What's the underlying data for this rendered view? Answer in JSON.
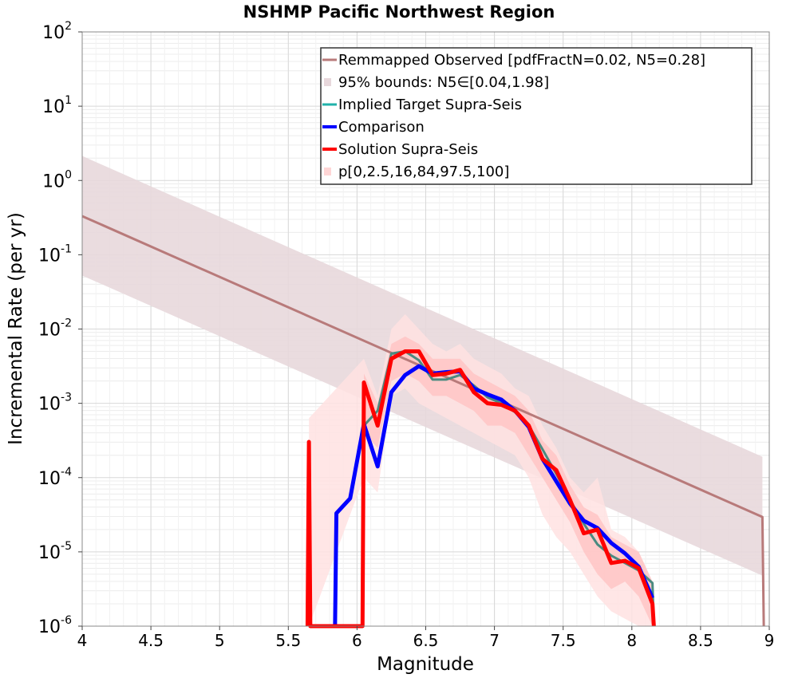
{
  "chart_data": {
    "type": "line",
    "title": "NSHMP Pacific Northwest Region",
    "xlabel": "Magnitude",
    "ylabel": "Incremental Rate (per yr)",
    "xlim": [
      4,
      9
    ],
    "ylim_log10": [
      -6,
      2
    ],
    "yscale": "log",
    "grid": true,
    "x_ticks": [
      4,
      4.5,
      5,
      5.5,
      6,
      6.5,
      7,
      7.5,
      8,
      8.5,
      9
    ],
    "x_tick_labels": [
      "4",
      "4.5",
      "5",
      "5.5",
      "6",
      "6.5",
      "7",
      "7.5",
      "8",
      "8.5",
      "9"
    ],
    "y_ticks": [
      {
        "base": "10",
        "exp": "2",
        "log10": 2
      },
      {
        "base": "10",
        "exp": "1",
        "log10": 1
      },
      {
        "base": "10",
        "exp": "0",
        "log10": 0
      },
      {
        "base": "10",
        "exp": "-1",
        "log10": -1
      },
      {
        "base": "10",
        "exp": "-2",
        "log10": -2
      },
      {
        "base": "10",
        "exp": "-3",
        "log10": -3
      },
      {
        "base": "10",
        "exp": "-4",
        "log10": -4
      },
      {
        "base": "10",
        "exp": "-5",
        "log10": -5
      },
      {
        "base": "10",
        "exp": "-6",
        "log10": -6
      }
    ],
    "legend_position": "top-right",
    "legend": [
      {
        "label": "Remmapped Observed [pdfFractN=0.02, N5=0.28]",
        "color": "#b87a7a",
        "style": "line"
      },
      {
        "label": "95% bounds: N5∈[0.04,1.98]",
        "color": "#e8d8dc",
        "style": "band"
      },
      {
        "label": "Implied Target Supra-Seis",
        "color": "#20b2aa",
        "style": "line"
      },
      {
        "label": "Comparison",
        "color": "#0000ff",
        "style": "thickline"
      },
      {
        "label": "Solution Supra-Seis",
        "color": "#ff0000",
        "style": "thickline"
      },
      {
        "label": "p[0,2.5,16,84,97.5,100]",
        "color": "#ffd6d6",
        "style": "band"
      }
    ],
    "series": [
      {
        "name": "Remmapped Observed [pdfFractN=0.02, N5=0.28]",
        "color": "#b87a7a",
        "width": 3,
        "x": [
          4.0,
          8.95,
          8.96
        ],
        "y_log10": [
          -0.48,
          -4.53,
          -6.0
        ]
      },
      {
        "name": "Implied Target Supra-Seis",
        "color": "#4a8a80",
        "width": 3,
        "x": [
          6.05,
          6.15,
          6.25,
          6.35,
          6.45,
          6.55,
          6.65,
          6.75,
          6.85,
          6.95,
          7.05,
          7.15,
          7.25,
          7.35,
          7.45,
          7.55,
          7.65,
          7.75,
          7.85,
          7.95,
          8.05,
          8.15,
          8.16
        ],
        "y_log10": [
          -3.3,
          -3.1,
          -2.33,
          -2.3,
          -2.42,
          -2.68,
          -2.68,
          -2.62,
          -2.76,
          -2.92,
          -3.0,
          -3.12,
          -3.3,
          -3.62,
          -3.95,
          -4.3,
          -4.62,
          -4.9,
          -5.05,
          -5.15,
          -5.25,
          -5.42,
          -6.0
        ]
      },
      {
        "name": "Comparison",
        "color": "#0000ff",
        "width": 5,
        "x": [
          5.84,
          5.85,
          5.95,
          6.05,
          6.15,
          6.25,
          6.35,
          6.45,
          6.55,
          6.65,
          6.75,
          6.85,
          6.95,
          7.05,
          7.15,
          7.25,
          7.35,
          7.45,
          7.55,
          7.65,
          7.75,
          7.85,
          7.95,
          8.05,
          8.15
        ],
        "y_log10": [
          -6.0,
          -4.48,
          -4.28,
          -3.28,
          -3.85,
          -2.85,
          -2.62,
          -2.5,
          -2.6,
          -2.58,
          -2.57,
          -2.8,
          -2.88,
          -2.95,
          -3.1,
          -3.32,
          -3.75,
          -4.05,
          -4.35,
          -4.58,
          -4.68,
          -4.88,
          -5.02,
          -5.2,
          -5.62
        ]
      },
      {
        "name": "Solution Supra-Seis",
        "color": "#ff0000",
        "width": 5,
        "x": [
          5.64,
          5.65,
          5.66,
          6.04,
          6.05,
          6.15,
          6.25,
          6.35,
          6.45,
          6.55,
          6.65,
          6.75,
          6.85,
          6.95,
          7.05,
          7.15,
          7.25,
          7.35,
          7.45,
          7.55,
          7.65,
          7.75,
          7.85,
          7.95,
          8.05,
          8.15,
          8.16
        ],
        "y_log10": [
          -6.0,
          -3.52,
          -6.0,
          -6.0,
          -2.72,
          -3.3,
          -2.4,
          -2.3,
          -2.3,
          -2.62,
          -2.6,
          -2.55,
          -2.85,
          -3.0,
          -3.02,
          -3.1,
          -3.3,
          -3.75,
          -3.9,
          -4.3,
          -4.75,
          -4.7,
          -5.15,
          -5.12,
          -5.22,
          -5.7,
          -6.0
        ]
      }
    ],
    "bands": [
      {
        "name": "95% bounds: N5∈[0.04,1.98]",
        "color": "#e8d8dc",
        "x": [
          4.0,
          8.95
        ],
        "lower_log10": [
          -1.28,
          -5.32
        ],
        "upper_log10": [
          0.33,
          -3.72
        ]
      },
      {
        "name": "p[0,2.5,16,84,97.5,100] outer",
        "color": "#ffe2e2",
        "x": [
          5.65,
          6.05,
          6.15,
          6.25,
          6.35,
          6.45,
          6.55,
          6.65,
          6.75,
          6.85,
          6.95,
          7.05,
          7.15,
          7.25,
          7.35,
          7.45,
          7.55,
          7.65,
          7.75,
          7.85,
          7.95,
          8.05,
          8.15
        ],
        "lower_log10": [
          -6.0,
          -4.0,
          -4.2,
          -2.9,
          -2.8,
          -3.0,
          -3.1,
          -3.2,
          -3.3,
          -3.4,
          -3.5,
          -3.6,
          -3.7,
          -4.0,
          -4.5,
          -4.8,
          -5.0,
          -5.3,
          -5.6,
          -5.8,
          -5.9,
          -6.0,
          -6.0
        ],
        "upper_log10": [
          -3.2,
          -2.4,
          -2.9,
          -2.0,
          -1.8,
          -2.0,
          -2.2,
          -2.3,
          -2.2,
          -2.4,
          -2.5,
          -2.6,
          -2.8,
          -2.9,
          -3.3,
          -3.6,
          -4.0,
          -4.2,
          -4.0,
          -4.7,
          -4.8,
          -5.0,
          -5.4
        ]
      },
      {
        "name": "p[0,2.5,16,84,97.5,100] inner",
        "color": "#ffc4c4",
        "x": [
          6.05,
          6.15,
          6.25,
          6.35,
          6.45,
          6.55,
          6.65,
          6.75,
          6.85,
          6.95,
          7.05,
          7.15,
          7.25,
          7.35,
          7.45,
          7.55,
          7.65,
          7.75,
          7.85,
          7.95,
          8.05,
          8.15
        ],
        "lower_log10": [
          -3.4,
          -3.6,
          -2.7,
          -2.6,
          -2.7,
          -2.9,
          -2.9,
          -3.0,
          -3.1,
          -3.3,
          -3.3,
          -3.4,
          -3.7,
          -4.0,
          -4.3,
          -4.6,
          -5.0,
          -5.3,
          -5.5,
          -5.4,
          -5.6,
          -6.0
        ],
        "upper_log10": [
          -2.6,
          -3.0,
          -2.2,
          -2.1,
          -2.2,
          -2.4,
          -2.4,
          -2.4,
          -2.6,
          -2.7,
          -2.8,
          -2.9,
          -3.1,
          -3.5,
          -3.7,
          -4.1,
          -4.4,
          -4.5,
          -4.8,
          -4.9,
          -5.0,
          -5.4
        ]
      }
    ]
  }
}
